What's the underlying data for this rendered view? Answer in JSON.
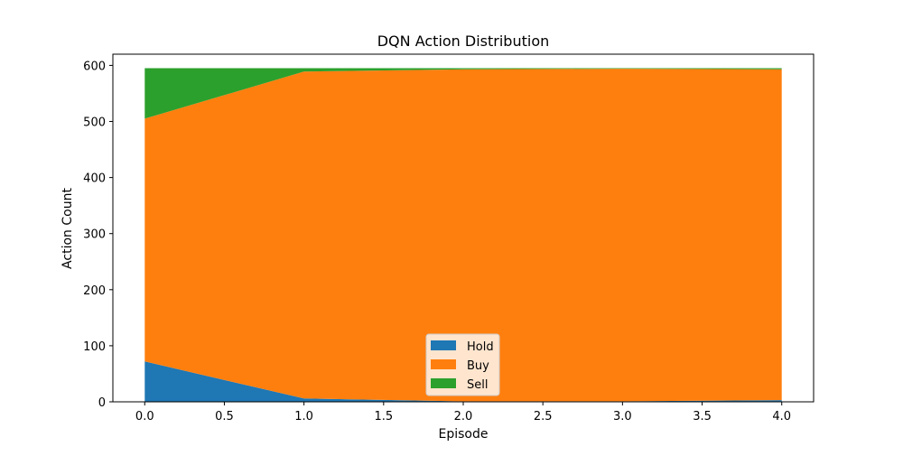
{
  "chart_data": {
    "type": "area",
    "stacked": true,
    "title": "DQN Action Distribution",
    "xlabel": "Episode",
    "ylabel": "Action Count",
    "x": [
      0,
      1,
      2,
      3,
      4
    ],
    "xlim": [
      -0.2,
      4.2
    ],
    "ylim": [
      0,
      620
    ],
    "xticks": [
      0.0,
      0.5,
      1.0,
      1.5,
      2.0,
      2.5,
      3.0,
      3.5,
      4.0
    ],
    "xtick_labels": [
      "0.0",
      "0.5",
      "1.0",
      "1.5",
      "2.0",
      "2.5",
      "3.0",
      "3.5",
      "4.0"
    ],
    "yticks": [
      0,
      100,
      200,
      300,
      400,
      500,
      600
    ],
    "ytick_labels": [
      "0",
      "100",
      "200",
      "300",
      "400",
      "500",
      "600"
    ],
    "grid": false,
    "legend_position": "bottom-center",
    "series": [
      {
        "name": "Hold",
        "color": "#1f77b4",
        "values": [
          72,
          6,
          1,
          1,
          3
        ]
      },
      {
        "name": "Buy",
        "color": "#ff7f0e",
        "values": [
          433,
          583,
          592,
          593,
          590
        ]
      },
      {
        "name": "Sell",
        "color": "#2ca02c",
        "values": [
          90,
          6,
          2,
          1,
          2
        ]
      }
    ]
  }
}
